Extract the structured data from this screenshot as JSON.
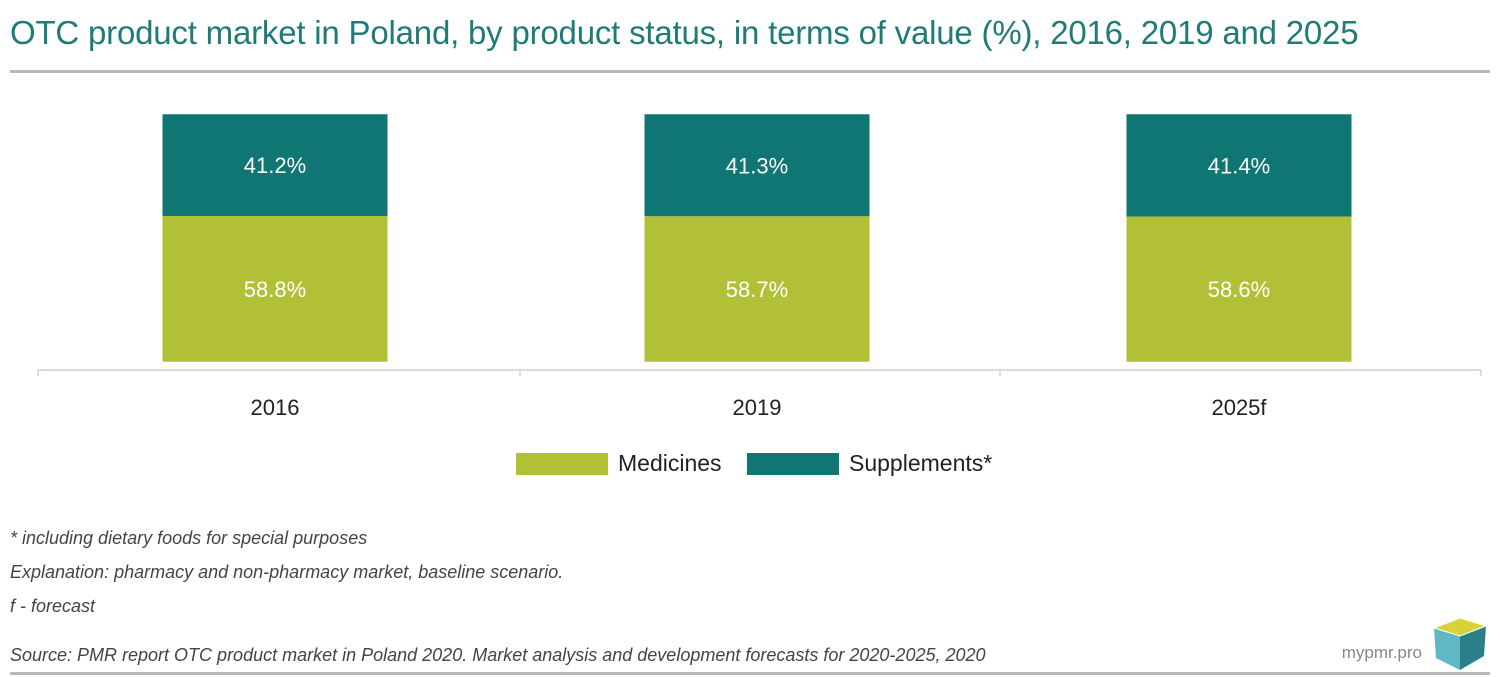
{
  "title": "OTC product market in Poland, by product status, in terms of value (%), 2016, 2019 and 2025",
  "chart_data": {
    "type": "bar",
    "stacked": true,
    "categories": [
      "2016",
      "2019",
      "2025f"
    ],
    "series": [
      {
        "name": "Medicines",
        "values": [
          58.8,
          58.7,
          58.6
        ],
        "labels": [
          "58.8%",
          "58.7%",
          "58.6%"
        ],
        "color": "#b1c037"
      },
      {
        "name": "Supplements*",
        "values": [
          41.2,
          41.3,
          41.4
        ],
        "labels": [
          "41.2%",
          "41.3%",
          "41.4%"
        ],
        "color": "#0f7673"
      }
    ],
    "ylim": [
      0,
      100
    ],
    "grid": false,
    "legend_position": "bottom"
  },
  "legend": {
    "medicines": "Medicines",
    "supplements": "Supplements*"
  },
  "notes": {
    "footnote": "* including dietary foods for special purposes",
    "explanation": "Explanation: pharmacy and non-pharmacy market, baseline scenario.",
    "forecast": "f - forecast",
    "source": "Source: PMR report OTC product market in Poland 2020. Market analysis and development forecasts for 2020-2025, 2020"
  },
  "brand": {
    "text": "mypmr.pro",
    "logo_icon": "cube-logo-icon"
  }
}
